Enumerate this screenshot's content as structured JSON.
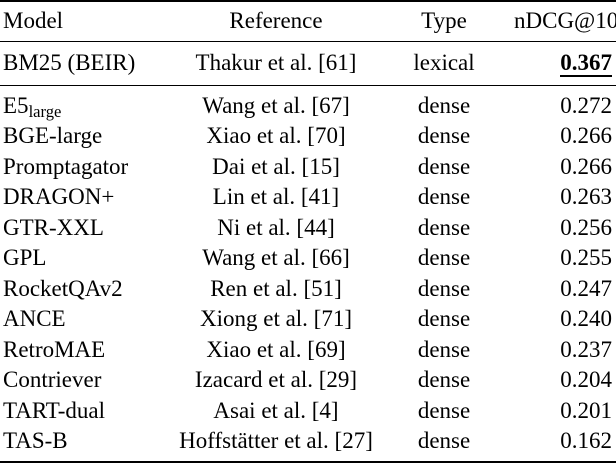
{
  "table": {
    "header": {
      "model": "Model",
      "reference": "Reference",
      "type": "Type",
      "metric": "nDCG@10"
    },
    "baseline": {
      "model": "BM25 (BEIR)",
      "reference": "Thakur et al. [61]",
      "type": "lexical",
      "ndcg": "0.367"
    },
    "rows": [
      {
        "model": "E5",
        "model_sub": "large",
        "reference": "Wang et al. [67]",
        "type": "dense",
        "ndcg": "0.272"
      },
      {
        "model": "BGE-large",
        "reference": "Xiao et al. [70]",
        "type": "dense",
        "ndcg": "0.266"
      },
      {
        "model": "Promptagator",
        "reference": "Dai et al. [15]",
        "type": "dense",
        "ndcg": "0.266"
      },
      {
        "model": "DRAGON+",
        "reference": "Lin et al. [41]",
        "type": "dense",
        "ndcg": "0.263"
      },
      {
        "model": "GTR-XXL",
        "reference": "Ni et al. [44]",
        "type": "dense",
        "ndcg": "0.256"
      },
      {
        "model": "GPL",
        "reference": "Wang et al. [66]",
        "type": "dense",
        "ndcg": "0.255"
      },
      {
        "model": "RocketQAv2",
        "reference": "Ren et al. [51]",
        "type": "dense",
        "ndcg": "0.247"
      },
      {
        "model": "ANCE",
        "reference": "Xiong et al. [71]",
        "type": "dense",
        "ndcg": "0.240"
      },
      {
        "model": "RetroMAE",
        "reference": "Xiao et al. [69]",
        "type": "dense",
        "ndcg": "0.237"
      },
      {
        "model": "Contriever",
        "reference": "Izacard et al. [29]",
        "type": "dense",
        "ndcg": "0.204"
      },
      {
        "model": "TART-dual",
        "reference": "Asai et al. [4]",
        "type": "dense",
        "ndcg": "0.201"
      },
      {
        "model": "TAS-B",
        "reference": "Hoffstätter et al. [27]",
        "type": "dense",
        "ndcg": "0.162"
      }
    ],
    "colors": {
      "text": "#000000",
      "background": "#ffffff",
      "rule": "#000000"
    }
  }
}
